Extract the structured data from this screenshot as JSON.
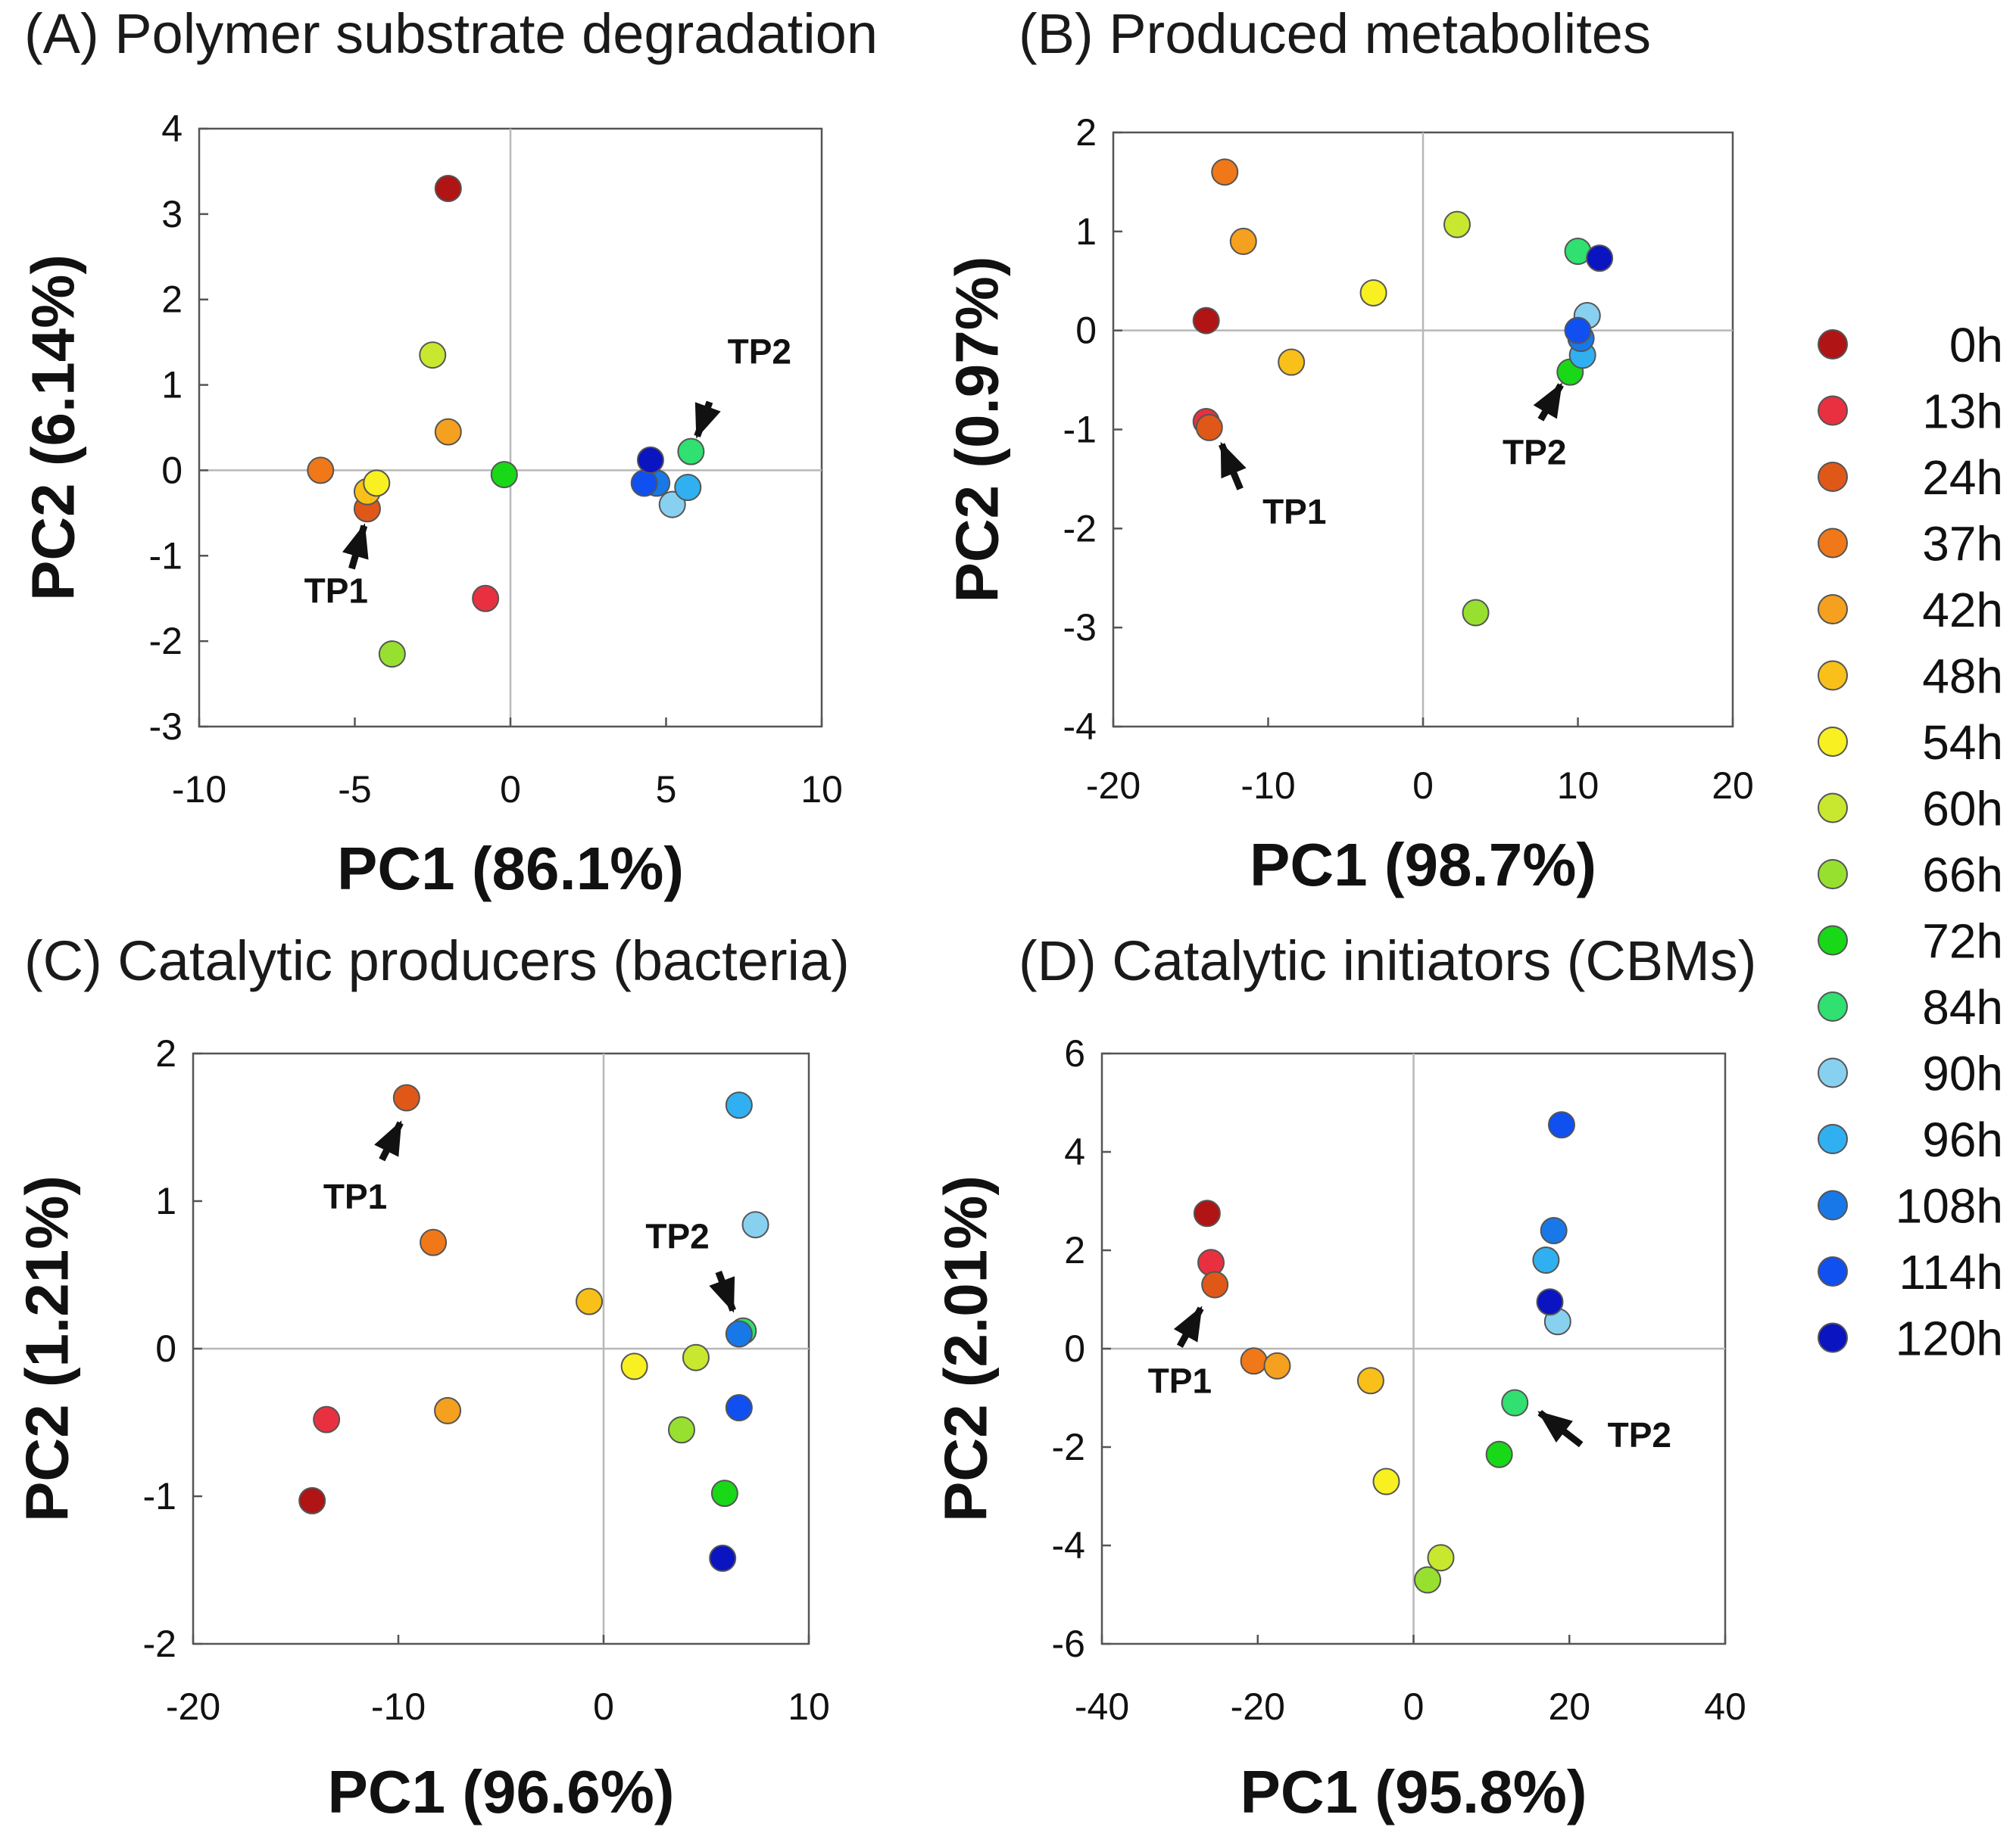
{
  "legend": [
    {
      "label": "0h",
      "color": "#b01414"
    },
    {
      "label": "13h",
      "color": "#e83040"
    },
    {
      "label": "24h",
      "color": "#e05818"
    },
    {
      "label": "37h",
      "color": "#f07818"
    },
    {
      "label": "42h",
      "color": "#f5a01e"
    },
    {
      "label": "48h",
      "color": "#f8c018"
    },
    {
      "label": "54h",
      "color": "#f8f020"
    },
    {
      "label": "60h",
      "color": "#c8e830"
    },
    {
      "label": "66h",
      "color": "#98e030"
    },
    {
      "label": "72h",
      "color": "#18d818"
    },
    {
      "label": "84h",
      "color": "#30e070"
    },
    {
      "label": "90h",
      "color": "#88d0f0"
    },
    {
      "label": "96h",
      "color": "#30b0f0"
    },
    {
      "label": "108h",
      "color": "#1878e8"
    },
    {
      "label": "114h",
      "color": "#1050f0"
    },
    {
      "label": "120h",
      "color": "#0a14c0"
    }
  ],
  "chart_data": [
    {
      "type": "scatter",
      "title": "(A) Polymer substrate degradation",
      "xlabel": "PC1  (86.1%)",
      "ylabel": "PC2  (6.14%)",
      "xlim": [
        -10,
        10
      ],
      "ylim": [
        -3,
        4
      ],
      "xticks": [
        -10,
        -5,
        0,
        5,
        10
      ],
      "yticks": [
        -3,
        -2,
        -1,
        0,
        1,
        2,
        3,
        4
      ],
      "points": [
        {
          "t": "0h",
          "x": -2.0,
          "y": 3.3
        },
        {
          "t": "13h",
          "x": -0.8,
          "y": -1.5
        },
        {
          "t": "24h",
          "x": -4.6,
          "y": -0.45
        },
        {
          "t": "37h",
          "x": -6.1,
          "y": 0.0
        },
        {
          "t": "42h",
          "x": -2.0,
          "y": 0.45
        },
        {
          "t": "48h",
          "x": -4.6,
          "y": -0.25
        },
        {
          "t": "54h",
          "x": -4.3,
          "y": -0.15
        },
        {
          "t": "60h",
          "x": -2.5,
          "y": 1.35
        },
        {
          "t": "66h",
          "x": -3.8,
          "y": -2.15
        },
        {
          "t": "72h",
          "x": -0.2,
          "y": -0.05
        },
        {
          "t": "84h",
          "x": 5.8,
          "y": 0.22
        },
        {
          "t": "90h",
          "x": 5.2,
          "y": -0.4
        },
        {
          "t": "96h",
          "x": 5.7,
          "y": -0.2
        },
        {
          "t": "108h",
          "x": 4.7,
          "y": -0.15
        },
        {
          "t": "114h",
          "x": 4.3,
          "y": -0.15
        },
        {
          "t": "120h",
          "x": 4.5,
          "y": 0.12
        }
      ],
      "annotations": [
        {
          "text": "TP1",
          "x": -5.6,
          "y": -1.55,
          "from_x": -5.1,
          "from_y": -1.15,
          "to_x": -4.7,
          "to_y": -0.65
        },
        {
          "text": "TP2",
          "x": 8.0,
          "y": 1.25,
          "from_x": 6.4,
          "from_y": 0.8,
          "to_x": 6.0,
          "to_y": 0.4
        }
      ]
    },
    {
      "type": "scatter",
      "title": "(B) Produced metabolites",
      "xlabel": "PC1  (98.7%)",
      "ylabel": "PC2  (0.97%)",
      "xlim": [
        -20,
        20
      ],
      "ylim": [
        -4,
        2
      ],
      "xticks": [
        -20,
        -10,
        0,
        10,
        20
      ],
      "yticks": [
        -4,
        -3,
        -2,
        -1,
        0,
        1,
        2
      ],
      "points": [
        {
          "t": "0h",
          "x": -14.0,
          "y": 0.1
        },
        {
          "t": "13h",
          "x": -14.0,
          "y": -0.92
        },
        {
          "t": "24h",
          "x": -13.8,
          "y": -0.98
        },
        {
          "t": "37h",
          "x": -12.8,
          "y": 1.6
        },
        {
          "t": "42h",
          "x": -11.6,
          "y": 0.9
        },
        {
          "t": "48h",
          "x": -8.5,
          "y": -0.32
        },
        {
          "t": "54h",
          "x": -3.2,
          "y": 0.38
        },
        {
          "t": "60h",
          "x": 2.2,
          "y": 1.07
        },
        {
          "t": "66h",
          "x": 3.4,
          "y": -2.85
        },
        {
          "t": "72h",
          "x": 9.5,
          "y": -0.42
        },
        {
          "t": "84h",
          "x": 10.0,
          "y": 0.8
        },
        {
          "t": "90h",
          "x": 10.6,
          "y": 0.15
        },
        {
          "t": "96h",
          "x": 10.3,
          "y": -0.25
        },
        {
          "t": "108h",
          "x": 10.2,
          "y": -0.08
        },
        {
          "t": "114h",
          "x": 10.0,
          "y": 0.0
        },
        {
          "t": "120h",
          "x": 11.4,
          "y": 0.73
        }
      ],
      "annotations": [
        {
          "text": "TP1",
          "x": -8.3,
          "y": -1.95,
          "from_x": -11.8,
          "from_y": -1.6,
          "to_x": -13.0,
          "to_y": -1.15
        },
        {
          "text": "TP2",
          "x": 7.2,
          "y": -1.35,
          "from_x": 7.6,
          "from_y": -0.9,
          "to_x": 8.9,
          "to_y": -0.55
        }
      ]
    },
    {
      "type": "scatter",
      "title": "(C) Catalytic producers (bacteria)",
      "xlabel": "PC1 (96.6%)",
      "ylabel": "PC2 (1.21%)",
      "xlim": [
        -20,
        10
      ],
      "ylim": [
        -2,
        2
      ],
      "xticks": [
        -20,
        -10,
        0,
        10
      ],
      "yticks": [
        -2,
        -1,
        0,
        1,
        2
      ],
      "points": [
        {
          "t": "0h",
          "x": -14.2,
          "y": -1.03
        },
        {
          "t": "13h",
          "x": -13.5,
          "y": -0.48
        },
        {
          "t": "24h",
          "x": -9.6,
          "y": 1.7
        },
        {
          "t": "37h",
          "x": -8.3,
          "y": 0.72
        },
        {
          "t": "42h",
          "x": -7.6,
          "y": -0.42
        },
        {
          "t": "48h",
          "x": -0.7,
          "y": 0.32
        },
        {
          "t": "54h",
          "x": 1.5,
          "y": -0.12
        },
        {
          "t": "60h",
          "x": 4.5,
          "y": -0.06
        },
        {
          "t": "66h",
          "x": 3.8,
          "y": -0.55
        },
        {
          "t": "72h",
          "x": 5.9,
          "y": -0.98
        },
        {
          "t": "84h",
          "x": 6.8,
          "y": 0.12
        },
        {
          "t": "90h",
          "x": 7.4,
          "y": 0.84
        },
        {
          "t": "96h",
          "x": 6.6,
          "y": 1.65
        },
        {
          "t": "108h",
          "x": 6.6,
          "y": 0.1
        },
        {
          "t": "114h",
          "x": 6.6,
          "y": -0.4
        },
        {
          "t": "120h",
          "x": 5.8,
          "y": -1.42
        }
      ],
      "annotations": [
        {
          "text": "TP1",
          "x": -12.1,
          "y": 0.95,
          "from_x": -10.8,
          "from_y": 1.28,
          "to_x": -9.9,
          "to_y": 1.53
        },
        {
          "text": "TP2",
          "x": 3.6,
          "y": 0.68,
          "from_x": 5.6,
          "from_y": 0.52,
          "to_x": 6.3,
          "to_y": 0.26
        }
      ]
    },
    {
      "type": "scatter",
      "title": "(D) Catalytic initiators (CBMs)",
      "xlabel": "PC1  (95.8%)",
      "ylabel": "PC2  (2.01%)",
      "xlim": [
        -40,
        40
      ],
      "ylim": [
        -6,
        6
      ],
      "xticks": [
        -40,
        -20,
        0,
        20,
        40
      ],
      "yticks": [
        -6,
        -4,
        -2,
        0,
        2,
        4,
        6
      ],
      "points": [
        {
          "t": "0h",
          "x": -26.5,
          "y": 2.75
        },
        {
          "t": "13h",
          "x": -26.0,
          "y": 1.75
        },
        {
          "t": "24h",
          "x": -25.5,
          "y": 1.3
        },
        {
          "t": "37h",
          "x": -20.5,
          "y": -0.25
        },
        {
          "t": "42h",
          "x": -17.5,
          "y": -0.35
        },
        {
          "t": "48h",
          "x": -5.5,
          "y": -0.65
        },
        {
          "t": "54h",
          "x": -3.5,
          "y": -2.7
        },
        {
          "t": "60h",
          "x": 3.5,
          "y": -4.25
        },
        {
          "t": "66h",
          "x": 1.8,
          "y": -4.7
        },
        {
          "t": "72h",
          "x": 11.0,
          "y": -2.15
        },
        {
          "t": "84h",
          "x": 13.0,
          "y": -1.1
        },
        {
          "t": "90h",
          "x": 18.5,
          "y": 0.55
        },
        {
          "t": "96h",
          "x": 17.0,
          "y": 1.8
        },
        {
          "t": "108h",
          "x": 18.0,
          "y": 2.4
        },
        {
          "t": "114h",
          "x": 19.0,
          "y": 4.55
        },
        {
          "t": "120h",
          "x": 17.5,
          "y": 0.95
        }
      ],
      "annotations": [
        {
          "text": "TP1",
          "x": -30.0,
          "y": -0.9,
          "from_x": -30.0,
          "from_y": 0.05,
          "to_x": -27.3,
          "to_y": 0.82
        },
        {
          "text": "TP2",
          "x": 29.0,
          "y": -2.0,
          "from_x": 21.5,
          "from_y": -1.95,
          "to_x": 16.2,
          "to_y": -1.3
        }
      ]
    }
  ]
}
